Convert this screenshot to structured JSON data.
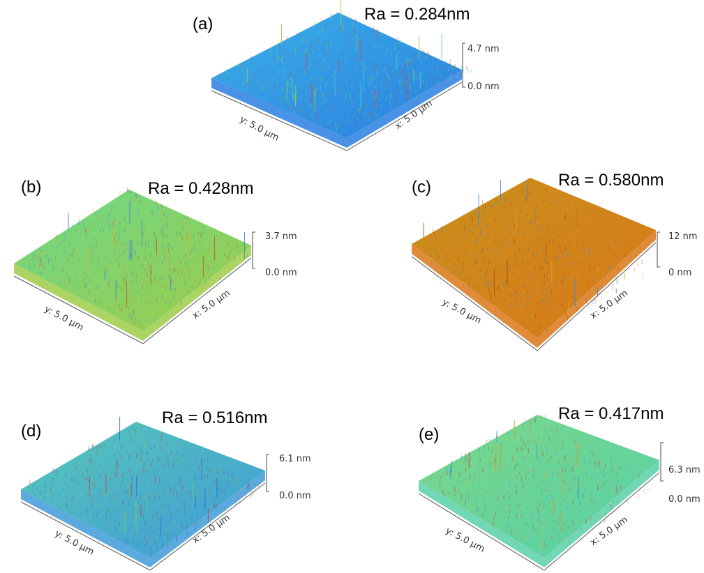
{
  "panels": [
    {
      "label": "(a)",
      "ra": "Ra = 0.284nm",
      "zmax": "4.7 nm",
      "zmin": "0.0 nm",
      "y_axis": "y: 5.0 µm",
      "x_axis": "x: 5.0 µm"
    },
    {
      "label": "(b)",
      "ra": "Ra = 0.428nm",
      "zmax": "3.7 nm",
      "zmin": "0.0 nm",
      "y_axis": "y: 5.0 µm",
      "x_axis": "x: 5.0 µm"
    },
    {
      "label": "(c)",
      "ra": "Ra = 0.580nm",
      "zmax": "12 nm",
      "zmin": "0 nm",
      "y_axis": "y: 5.0 µm",
      "x_axis": "x: 5.0 µm"
    },
    {
      "label": "(d)",
      "ra": "Ra = 0.516nm",
      "zmax": "6.1 nm",
      "zmin": "0.0 nm",
      "y_axis": "y: 5.0 µm",
      "x_axis": "x: 5.0 µm"
    },
    {
      "label": "(e)",
      "ra": "Ra = 0.417nm",
      "zmax": "6.3 nm",
      "zmin": "0.0 nm",
      "y_axis": "y: 5.0 µm",
      "x_axis": "x: 5.0 µm"
    }
  ]
}
